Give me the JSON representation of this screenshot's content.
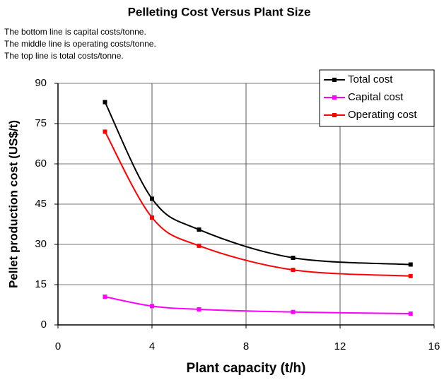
{
  "chart_data": {
    "type": "line",
    "title": "Pelleting Cost Versus Plant Size",
    "annotations": [
      "The bottom line is capital costs/tonne.",
      "The middle line is operating costs/tonne.",
      "The top line is total costs/tonne."
    ],
    "x_label": "Plant capacity (t/h)",
    "y_label": "Pellet production cost (US$/t)",
    "x": [
      2,
      4,
      6,
      10,
      15
    ],
    "series": [
      {
        "name": "Total cost",
        "color": "#000000",
        "values": [
          83,
          47,
          35.5,
          25,
          22.5
        ]
      },
      {
        "name": "Capital cost",
        "color": "#ff00ff",
        "values": [
          10.5,
          7,
          5.8,
          4.8,
          4.2
        ]
      },
      {
        "name": "Operating cost",
        "color": "#ff0000",
        "values": [
          72,
          40,
          29.5,
          20.5,
          18.2
        ]
      }
    ],
    "xlim": [
      0,
      16
    ],
    "xticks": [
      0,
      4,
      8,
      12,
      16
    ],
    "ylim": [
      0,
      90
    ],
    "yticks": [
      0,
      15,
      30,
      45,
      60,
      75,
      90
    ],
    "grid": true,
    "legend": "upper right"
  }
}
